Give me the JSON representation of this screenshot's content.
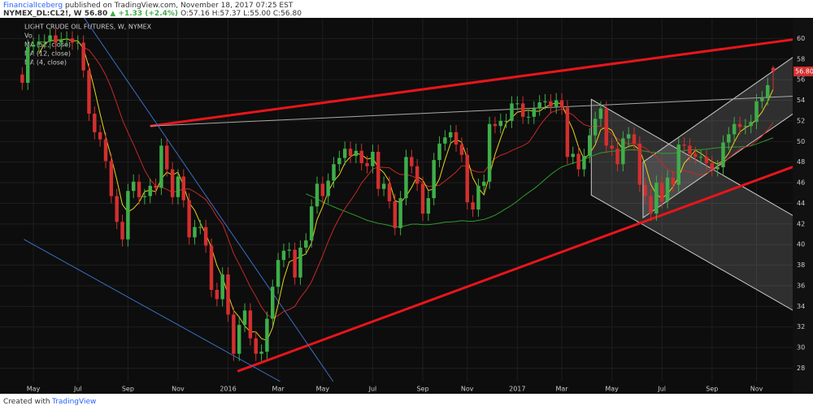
{
  "header": {
    "publisher": "FinancialIceberg",
    "published": "published on TradingView.com, November 18, 2017 07:25 EST",
    "symbol": "NYMEX_DL:CL2!, W",
    "last": "56.80",
    "change": "▲ +1.33 (+2.4%)",
    "ohlc": "O:57.16 H:57.37 L:55.00 C:56.80"
  },
  "footer": {
    "created": "Created with",
    "brand": "TradingView"
  },
  "chart_data": {
    "type": "candlestick",
    "title": "LIGHT CRUDE OIL FUTURES, W, NYMEX",
    "volume_label": "Vol",
    "last_label": "56.80",
    "up_color": "#3fae49",
    "down_color": "#d32f2f",
    "xlim": [
      -4,
      138.5
    ],
    "ylim": [
      26.7,
      62.0
    ],
    "yticks": [
      28,
      30,
      32,
      34,
      36,
      38,
      40,
      42,
      44,
      46,
      48,
      50,
      52,
      54,
      56,
      58,
      60
    ],
    "xticks": [
      {
        "value": 2,
        "label": "May"
      },
      {
        "value": 10,
        "label": "Jul"
      },
      {
        "value": 19,
        "label": "Sep"
      },
      {
        "value": 28,
        "label": "Nov"
      },
      {
        "value": 37,
        "label": "2016"
      },
      {
        "value": 46,
        "label": "Mar"
      },
      {
        "value": 54,
        "label": "May"
      },
      {
        "value": 63,
        "label": "Jul"
      },
      {
        "value": 72,
        "label": "Sep"
      },
      {
        "value": 80,
        "label": "Nov"
      },
      {
        "value": 89,
        "label": "2017"
      },
      {
        "value": 97,
        "label": "Mar"
      },
      {
        "value": 106,
        "label": "May"
      },
      {
        "value": 115,
        "label": "Jul"
      },
      {
        "value": 124,
        "label": "Sep"
      },
      {
        "value": 132,
        "label": "Nov"
      }
    ],
    "moving_averages": [
      {
        "name": "MA (52, close)",
        "period": 52,
        "color": "#2e9c2e"
      },
      {
        "name": "MA (12, close)",
        "period": 12,
        "color": "#c62828"
      },
      {
        "name": "MA (4, close)",
        "period": 4,
        "color": "#e6d21a"
      }
    ],
    "drawings": [
      {
        "kind": "channel",
        "color": "#cccccc",
        "points": [
          [
            102.3,
            54.1
          ],
          [
            138.6,
            42.8
          ],
          [
            138.6,
            33.6
          ],
          [
            102.3,
            44.8
          ]
        ]
      },
      {
        "kind": "channel",
        "color": "#cccccc",
        "points": [
          [
            111.6,
            48.0
          ],
          [
            138.6,
            58.2
          ],
          [
            138.6,
            52.7
          ],
          [
            111.6,
            42.6
          ]
        ]
      },
      {
        "kind": "line",
        "color": "#e8151b",
        "points": [
          [
            23.0,
            51.5
          ],
          [
            138.6,
            59.9
          ]
        ]
      },
      {
        "kind": "line",
        "color": "#e8151b",
        "points": [
          [
            38.7,
            27.7
          ],
          [
            138.6,
            47.55
          ]
        ]
      },
      {
        "kind": "line",
        "color": "#aaaaaa",
        "points": [
          [
            23.0,
            51.5
          ],
          [
            138.6,
            54.4
          ]
        ]
      },
      {
        "kind": "line",
        "color": "#3b6fc4",
        "points": [
          [
            10.5,
            62.5
          ],
          [
            55.9,
            26.7
          ]
        ]
      },
      {
        "kind": "line",
        "color": "#3b6fc4",
        "points": [
          [
            0.3,
            40.5
          ],
          [
            46.4,
            26.7
          ]
        ]
      }
    ],
    "candles": [
      [
        56.5,
        57.2,
        55.0,
        55.7
      ],
      [
        55.7,
        59.9,
        55.0,
        59.2
      ],
      [
        59.2,
        60.1,
        58.5,
        59.4
      ],
      [
        59.4,
        60.4,
        58.7,
        59.7
      ],
      [
        59.7,
        60.4,
        59.0,
        59.7
      ],
      [
        59.7,
        61.0,
        59.0,
        60.3
      ],
      [
        60.3,
        61.0,
        58.9,
        59.6
      ],
      [
        59.6,
        60.6,
        58.9,
        59.9
      ],
      [
        59.9,
        60.7,
        59.2,
        60.0
      ],
      [
        60.0,
        60.7,
        58.9,
        59.6
      ],
      [
        59.6,
        60.3,
        58.9,
        59.6
      ],
      [
        59.6,
        60.3,
        56.2,
        56.9
      ],
      [
        56.9,
        57.6,
        52.0,
        52.7
      ],
      [
        52.7,
        53.4,
        50.2,
        50.9
      ],
      [
        50.9,
        51.6,
        49.5,
        50.2
      ],
      [
        50.2,
        50.9,
        47.4,
        48.1
      ],
      [
        48.1,
        48.8,
        44.0,
        44.7
      ],
      [
        44.7,
        45.4,
        41.5,
        42.2
      ],
      [
        42.2,
        42.9,
        39.8,
        40.5
      ],
      [
        40.5,
        45.9,
        39.8,
        45.2
      ],
      [
        45.2,
        46.8,
        44.5,
        46.1
      ],
      [
        46.1,
        46.8,
        43.9,
        44.6
      ],
      [
        44.6,
        45.4,
        43.9,
        44.7
      ],
      [
        44.7,
        46.4,
        44.0,
        45.7
      ],
      [
        45.7,
        46.4,
        44.8,
        45.5
      ],
      [
        45.5,
        50.3,
        44.8,
        49.6
      ],
      [
        49.6,
        50.3,
        46.6,
        47.3
      ],
      [
        47.3,
        48.0,
        43.9,
        44.6
      ],
      [
        44.6,
        47.3,
        43.9,
        46.6
      ],
      [
        46.6,
        47.3,
        43.6,
        44.3
      ],
      [
        44.3,
        45.0,
        40.0,
        40.7
      ],
      [
        40.7,
        42.4,
        40.0,
        41.7
      ],
      [
        41.7,
        42.4,
        41.0,
        41.7
      ],
      [
        41.7,
        42.4,
        39.2,
        39.9
      ],
      [
        39.9,
        40.6,
        34.9,
        35.6
      ],
      [
        35.6,
        36.3,
        34.0,
        34.7
      ],
      [
        34.7,
        37.8,
        34.0,
        37.1
      ],
      [
        37.1,
        37.8,
        32.5,
        33.2
      ],
      [
        33.2,
        33.9,
        28.7,
        29.4
      ],
      [
        29.4,
        32.9,
        28.7,
        32.2
      ],
      [
        32.2,
        34.3,
        31.5,
        33.6
      ],
      [
        33.6,
        34.3,
        30.2,
        30.9
      ],
      [
        30.9,
        31.6,
        28.7,
        29.4
      ],
      [
        29.4,
        30.3,
        28.7,
        29.6
      ],
      [
        29.6,
        33.5,
        28.9,
        32.8
      ],
      [
        32.8,
        36.6,
        32.1,
        35.9
      ],
      [
        35.9,
        39.2,
        35.2,
        38.5
      ],
      [
        38.5,
        40.1,
        37.8,
        39.4
      ],
      [
        39.4,
        40.2,
        38.7,
        39.5
      ],
      [
        39.5,
        40.2,
        36.1,
        36.8
      ],
      [
        36.8,
        40.4,
        36.1,
        39.7
      ],
      [
        39.7,
        41.1,
        39.0,
        40.4
      ],
      [
        40.4,
        44.4,
        39.7,
        43.7
      ],
      [
        43.7,
        46.6,
        43.0,
        45.9
      ],
      [
        45.9,
        46.6,
        44.0,
        44.7
      ],
      [
        44.7,
        46.9,
        44.0,
        46.2
      ],
      [
        46.2,
        48.5,
        45.5,
        47.8
      ],
      [
        47.8,
        49.1,
        47.1,
        48.4
      ],
      [
        48.4,
        50.0,
        47.7,
        49.3
      ],
      [
        49.3,
        50.0,
        47.9,
        48.6
      ],
      [
        48.6,
        49.8,
        47.9,
        49.1
      ],
      [
        49.1,
        49.8,
        47.2,
        47.9
      ],
      [
        47.9,
        48.6,
        46.9,
        47.6
      ],
      [
        47.6,
        49.7,
        46.9,
        49.0
      ],
      [
        49.0,
        49.7,
        44.7,
        45.4
      ],
      [
        45.4,
        46.6,
        44.7,
        45.9
      ],
      [
        45.9,
        46.6,
        43.5,
        44.2
      ],
      [
        44.2,
        44.9,
        40.9,
        41.6
      ],
      [
        41.6,
        45.2,
        40.9,
        44.5
      ],
      [
        44.5,
        49.2,
        43.8,
        48.5
      ],
      [
        48.5,
        49.2,
        46.9,
        47.6
      ],
      [
        47.6,
        48.3,
        45.2,
        45.9
      ],
      [
        45.9,
        46.6,
        42.3,
        43.0
      ],
      [
        43.0,
        45.2,
        42.3,
        44.5
      ],
      [
        44.5,
        48.9,
        43.8,
        48.2
      ],
      [
        48.2,
        50.5,
        47.5,
        49.8
      ],
      [
        49.8,
        51.1,
        49.1,
        50.4
      ],
      [
        50.4,
        51.6,
        49.7,
        50.9
      ],
      [
        50.9,
        51.6,
        49.0,
        49.7
      ],
      [
        49.7,
        50.4,
        48.0,
        48.7
      ],
      [
        48.7,
        49.4,
        43.4,
        44.1
      ],
      [
        44.1,
        44.8,
        42.7,
        43.4
      ],
      [
        43.4,
        46.4,
        42.7,
        45.7
      ],
      [
        45.7,
        46.8,
        45.0,
        46.1
      ],
      [
        46.1,
        52.4,
        45.4,
        51.7
      ],
      [
        51.7,
        52.4,
        50.8,
        51.5
      ],
      [
        51.5,
        52.7,
        50.8,
        52.0
      ],
      [
        52.0,
        52.7,
        51.3,
        52.0
      ],
      [
        52.0,
        54.4,
        51.3,
        53.7
      ],
      [
        53.7,
        54.4,
        53.0,
        53.7
      ],
      [
        53.7,
        54.4,
        51.7,
        52.4
      ],
      [
        52.4,
        53.1,
        51.7,
        52.4
      ],
      [
        52.4,
        53.9,
        51.7,
        53.2
      ],
      [
        53.2,
        54.5,
        52.5,
        53.8
      ],
      [
        53.8,
        54.6,
        53.1,
        53.9
      ],
      [
        53.9,
        54.6,
        52.7,
        53.4
      ],
      [
        53.4,
        54.7,
        52.7,
        54.0
      ],
      [
        54.0,
        54.7,
        52.6,
        53.3
      ],
      [
        53.3,
        54.0,
        47.8,
        48.5
      ],
      [
        48.5,
        49.5,
        47.8,
        48.8
      ],
      [
        48.8,
        49.5,
        46.6,
        47.3
      ],
      [
        47.3,
        49.3,
        46.6,
        48.6
      ],
      [
        48.6,
        51.3,
        47.9,
        50.6
      ],
      [
        50.6,
        52.9,
        49.9,
        52.2
      ],
      [
        52.2,
        53.9,
        51.5,
        53.2
      ],
      [
        53.2,
        53.9,
        48.9,
        49.6
      ],
      [
        49.6,
        50.3,
        48.6,
        49.3
      ],
      [
        49.3,
        50.0,
        47.1,
        47.8
      ],
      [
        47.8,
        51.0,
        47.1,
        50.3
      ],
      [
        50.3,
        51.4,
        49.6,
        50.7
      ],
      [
        50.7,
        51.4,
        49.1,
        49.8
      ],
      [
        49.8,
        50.5,
        45.1,
        45.8
      ],
      [
        45.8,
        46.5,
        44.0,
        44.7
      ],
      [
        44.7,
        45.4,
        42.3,
        43.0
      ],
      [
        43.0,
        46.7,
        42.3,
        46.0
      ],
      [
        46.0,
        46.7,
        43.5,
        44.2
      ],
      [
        44.2,
        47.2,
        43.5,
        46.5
      ],
      [
        46.5,
        47.2,
        45.1,
        45.8
      ],
      [
        45.8,
        50.4,
        45.1,
        49.7
      ],
      [
        49.7,
        50.4,
        48.9,
        49.6
      ],
      [
        49.6,
        50.3,
        48.1,
        48.8
      ],
      [
        48.8,
        49.5,
        47.8,
        48.5
      ],
      [
        48.5,
        49.2,
        47.8,
        48.5
      ],
      [
        48.5,
        49.2,
        47.2,
        47.9
      ],
      [
        47.9,
        48.6,
        46.6,
        47.3
      ],
      [
        47.3,
        48.2,
        46.6,
        47.5
      ],
      [
        47.5,
        50.6,
        46.8,
        49.9
      ],
      [
        49.9,
        51.4,
        49.2,
        50.7
      ],
      [
        50.7,
        52.4,
        50.0,
        51.7
      ],
      [
        51.7,
        52.4,
        50.7,
        51.4
      ],
      [
        51.4,
        52.2,
        50.7,
        51.5
      ],
      [
        51.5,
        52.6,
        50.8,
        51.9
      ],
      [
        51.9,
        54.6,
        51.2,
        53.9
      ],
      [
        53.9,
        54.9,
        53.2,
        54.2
      ],
      [
        54.2,
        56.2,
        53.5,
        55.47
      ],
      [
        57.16,
        57.37,
        55.0,
        56.8
      ]
    ]
  }
}
